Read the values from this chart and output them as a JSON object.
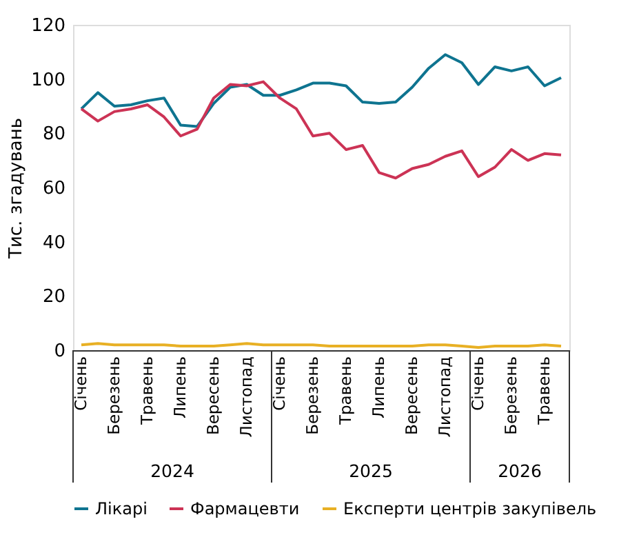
{
  "chart_data": {
    "type": "line",
    "ylabel": "Тис. згадувань",
    "categories": [
      "Січень",
      null,
      "Березень",
      null,
      "Травень",
      null,
      "Липень",
      null,
      "Вересень",
      null,
      "Листопад",
      null,
      "Січень",
      null,
      "Березень",
      null,
      "Травень",
      null,
      "Липень",
      null,
      "Вересень",
      null,
      "Листопад",
      null,
      "Січень",
      null,
      "Березень",
      null,
      "Травень",
      null
    ],
    "series": [
      {
        "name": "Лікарі",
        "color": "#0e7490",
        "values": [
          89,
          95,
          90,
          90.5,
          92,
          93,
          83,
          82.5,
          91,
          97,
          98,
          94,
          94,
          96,
          98.5,
          98.5,
          97.5,
          91.5,
          91,
          91.5,
          97,
          104,
          109,
          106,
          98,
          104.5,
          103,
          104.5,
          97.5,
          100.5
        ]
      },
      {
        "name": "Фармацевти",
        "color": "#cc3355",
        "values": [
          89,
          84.5,
          88,
          89,
          90.5,
          86,
          79,
          81.5,
          93,
          98,
          97.5,
          99,
          93,
          89,
          79,
          80,
          74,
          75.5,
          65.5,
          63.5,
          67,
          68.5,
          71.5,
          73.5,
          64,
          67.5,
          74,
          70,
          72.5,
          72
        ]
      },
      {
        "name": "Експерти центрів закупівель",
        "color": "#e8b024",
        "values": [
          2,
          2.5,
          2,
          2,
          2,
          2,
          1.5,
          1.5,
          1.5,
          2,
          2.5,
          2,
          2,
          2,
          2,
          1.5,
          1.5,
          1.5,
          1.5,
          1.5,
          1.5,
          2,
          2,
          1.5,
          1,
          1.5,
          1.5,
          1.5,
          2,
          1.5
        ]
      }
    ],
    "ylim": [
      0,
      120
    ],
    "yticks": [
      0,
      20,
      40,
      60,
      80,
      100,
      120
    ],
    "grid": false,
    "legend": "bottom",
    "marker": "none",
    "line_style": "solid",
    "annotations": [
      "2024",
      "2025",
      "2026"
    ]
  }
}
